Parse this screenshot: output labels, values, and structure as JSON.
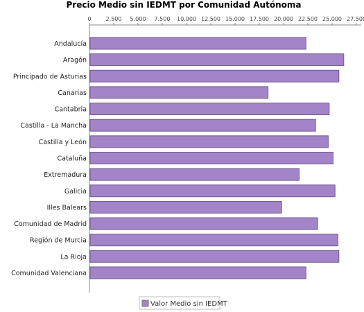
{
  "chart_data": {
    "type": "bar",
    "orientation": "horizontal",
    "title": "Precio Medio sin IEDMT por Comunidad Autónoma",
    "xlabel": "",
    "ylabel": "",
    "xlim": [
      0,
      28000
    ],
    "tick_values": [
      0,
      2500,
      5000,
      7500,
      10000,
      12500,
      15000,
      17500,
      20000,
      22500,
      25000,
      27500
    ],
    "tick_labels": [
      "0",
      "2.500",
      "5.000",
      "7.500",
      "10.000",
      "12.500",
      "15.000",
      "17.500",
      "20.000",
      "22.500",
      "25.000",
      "27.500"
    ],
    "categories": [
      "Andalucía",
      "Aragón",
      "Principado de Asturias",
      "Canarias",
      "Cantabria",
      "Castilla - La Mancha",
      "Castilla y León",
      "Cataluña",
      "Extremadura",
      "Galicia",
      "Illes Balears",
      "Comunidad de Madrid",
      "Región de Murcia",
      "La Rioja",
      "Comunidad Valenciana"
    ],
    "series": [
      {
        "name": "Valor Medio sin IEDMT",
        "color": "#a384c8",
        "values": [
          22300,
          26200,
          25700,
          18400,
          24700,
          23300,
          24600,
          25100,
          21600,
          25300,
          19800,
          23500,
          25600,
          25700,
          22300
        ]
      }
    ],
    "legend": "bottom-center",
    "grid": false
  }
}
